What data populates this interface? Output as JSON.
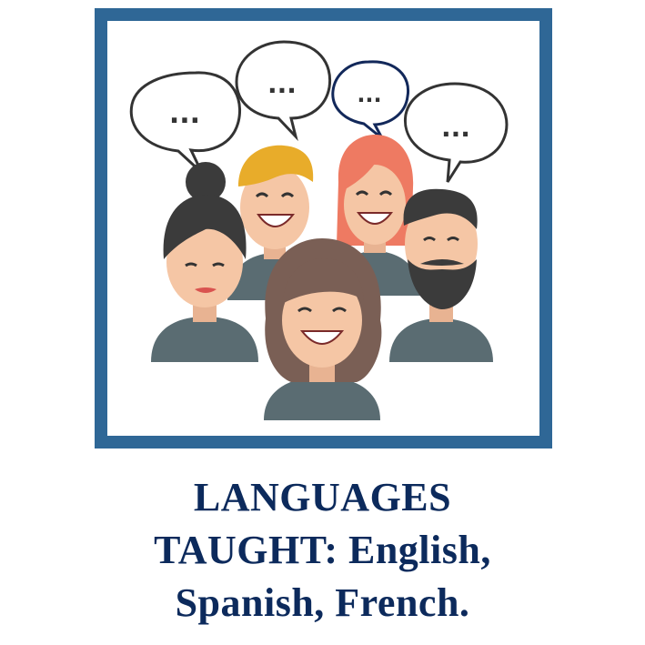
{
  "illustration": {
    "subject": "group-of-people-talking",
    "speech_bubble_text": "...",
    "colors": {
      "frame": "#2f6796",
      "skin": "#f5c6a5",
      "shirt": "#5a6c72",
      "bubble_outline": "#333333",
      "bubble_outline_accent": "#12285a",
      "hair_blonde": "#e8ac2a",
      "hair_red": "#ee7a62",
      "hair_dark": "#3b3b3b",
      "hair_brown": "#7a5f55"
    }
  },
  "caption": {
    "line1": "LANGUAGES",
    "line2": "TAUGHT: English,",
    "line3": "Spanish, French.",
    "color": "#0c2a5c"
  }
}
